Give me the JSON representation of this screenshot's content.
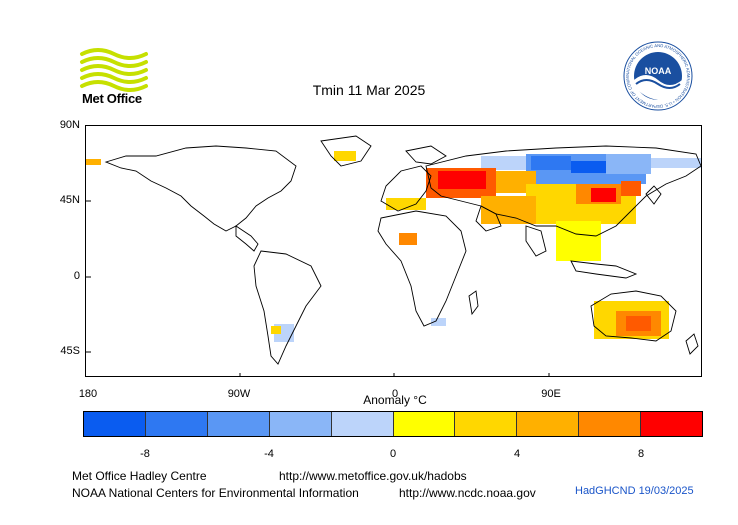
{
  "title": "Tmin 11 Mar 2025",
  "logos": {
    "left_name": "Met Office",
    "left_icon": "met-office-wave-logo",
    "right_icon": "noaa-emblem",
    "right_text": "NOAA",
    "right_ring_text": "NATIONAL OCEANIC AND ATMOSPHERIC ADMINISTRATION • U.S. DEPARTMENT OF COMMERCE •"
  },
  "map": {
    "projection": "equirectangular",
    "lat_labels": [
      "90N",
      "45N",
      "0",
      "45S"
    ],
    "lon_labels": [
      "180",
      "90W",
      "0",
      "90E"
    ],
    "land_fill": "#ffffff",
    "outline_color": "#000000"
  },
  "colorbar": {
    "label": "Anomaly °C",
    "colors": [
      "#0a5cf0",
      "#2e78f2",
      "#5a97f4",
      "#8ab6f7",
      "#bcd4fa",
      "#ffff00",
      "#ffd700",
      "#ffb000",
      "#ff8800",
      "#ff5a00",
      "#ff0000"
    ],
    "ticks": [
      "-8",
      "-4",
      "0",
      "4",
      "8"
    ]
  },
  "footer": {
    "line1_left": "Met Office Hadley Centre",
    "line1_right": "http://www.metoffice.gov.uk/hadobs",
    "line2_left": "NOAA National Centers for Environmental Information",
    "line2_right": "http://www.ncdc.noaa.gov",
    "dataset_date": "HadGHCND 19/03/2025"
  }
}
